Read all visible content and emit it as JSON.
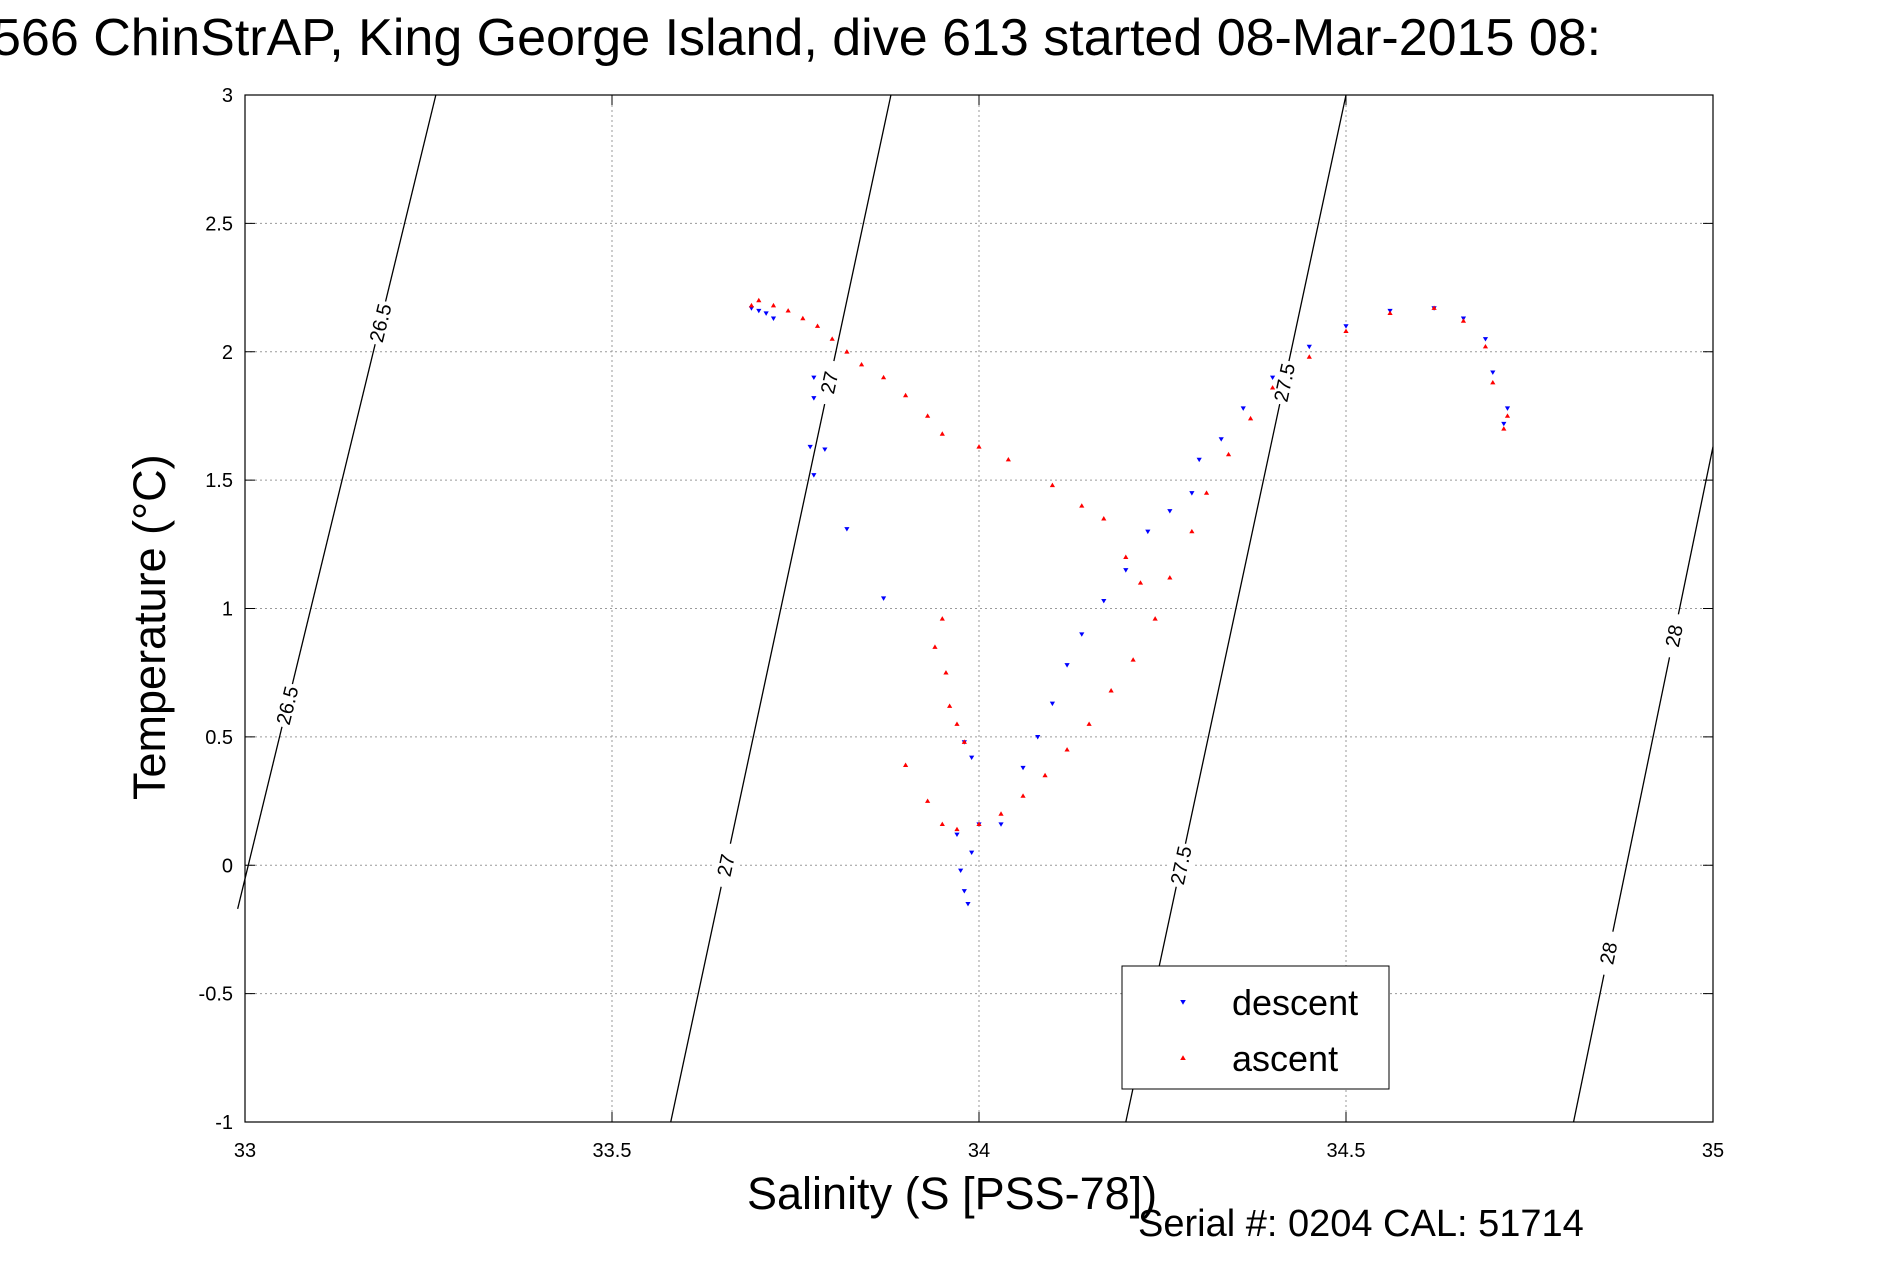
{
  "title": "566 ChinStrAP, King George Island, dive 613 started 08-Mar-2015 08:",
  "footer": "Serial #: 0204  CAL: 51714",
  "chart_data": {
    "type": "scatter",
    "title": "566 ChinStrAP, King George Island, dive 613 started 08-Mar-2015 08:",
    "xlabel": "Salinity (S [PSS-78])",
    "ylabel": "Temperature (°C)",
    "xlim": [
      33,
      35
    ],
    "ylim": [
      -1,
      3
    ],
    "x_ticks": [
      "33",
      "33.5",
      "34",
      "34.5",
      "35"
    ],
    "y_ticks": [
      "-1",
      "-0.5",
      "0",
      "0.5",
      "1",
      "1.5",
      "2",
      "2.5",
      "3"
    ],
    "grid": true,
    "legend_position": "lower-right",
    "contours": {
      "quantity": "density isolines",
      "levels": [
        {
          "level": "26.5",
          "line": [
            [
              32.99,
              -0.17
            ],
            [
              33.26,
              3.0
            ]
          ]
        },
        {
          "level": "27",
          "line": [
            [
              33.58,
              -1.0
            ],
            [
              33.88,
              3.0
            ]
          ]
        },
        {
          "level": "27.5",
          "line": [
            [
              34.2,
              -1.0
            ],
            [
              34.5,
              3.0
            ]
          ]
        },
        {
          "level": "28",
          "line": [
            [
              34.81,
              -1.0
            ],
            [
              35.0,
              1.63
            ]
          ]
        }
      ]
    },
    "series": [
      {
        "name": "descent",
        "color": "#0000ff",
        "marker": "triangle-down",
        "points": [
          [
            33.69,
            2.17
          ],
          [
            33.7,
            2.16
          ],
          [
            33.71,
            2.15
          ],
          [
            33.72,
            2.13
          ],
          [
            33.775,
            1.9
          ],
          [
            33.775,
            1.82
          ],
          [
            33.77,
            1.63
          ],
          [
            33.79,
            1.62
          ],
          [
            33.775,
            1.52
          ],
          [
            33.82,
            1.31
          ],
          [
            33.87,
            1.04
          ],
          [
            33.98,
            0.48
          ],
          [
            33.99,
            0.42
          ],
          [
            33.975,
            -0.02
          ],
          [
            33.98,
            -0.1
          ],
          [
            33.985,
            -0.15
          ],
          [
            33.99,
            0.05
          ],
          [
            33.97,
            0.12
          ],
          [
            34.0,
            0.16
          ],
          [
            34.03,
            0.16
          ],
          [
            34.06,
            0.38
          ],
          [
            34.08,
            0.5
          ],
          [
            34.1,
            0.63
          ],
          [
            34.12,
            0.78
          ],
          [
            34.14,
            0.9
          ],
          [
            34.17,
            1.03
          ],
          [
            34.2,
            1.15
          ],
          [
            34.23,
            1.3
          ],
          [
            34.26,
            1.38
          ],
          [
            34.29,
            1.45
          ],
          [
            34.3,
            1.58
          ],
          [
            34.33,
            1.66
          ],
          [
            34.36,
            1.78
          ],
          [
            34.4,
            1.9
          ],
          [
            34.45,
            2.02
          ],
          [
            34.5,
            2.1
          ],
          [
            34.56,
            2.16
          ],
          [
            34.62,
            2.17
          ],
          [
            34.66,
            2.13
          ],
          [
            34.69,
            2.05
          ],
          [
            34.7,
            1.92
          ],
          [
            34.72,
            1.78
          ],
          [
            34.715,
            1.72
          ]
        ]
      },
      {
        "name": "ascent",
        "color": "#ff0000",
        "marker": "triangle-up",
        "points": [
          [
            33.69,
            2.18
          ],
          [
            33.7,
            2.2
          ],
          [
            33.72,
            2.18
          ],
          [
            33.74,
            2.16
          ],
          [
            33.76,
            2.13
          ],
          [
            33.78,
            2.1
          ],
          [
            33.8,
            2.05
          ],
          [
            33.82,
            2.0
          ],
          [
            33.84,
            1.95
          ],
          [
            33.87,
            1.9
          ],
          [
            33.9,
            1.83
          ],
          [
            33.93,
            1.75
          ],
          [
            33.95,
            1.68
          ],
          [
            34.0,
            1.63
          ],
          [
            34.04,
            1.58
          ],
          [
            34.1,
            1.48
          ],
          [
            34.14,
            1.4
          ],
          [
            34.17,
            1.35
          ],
          [
            34.2,
            1.2
          ],
          [
            34.22,
            1.1
          ],
          [
            33.95,
            0.96
          ],
          [
            33.94,
            0.85
          ],
          [
            33.955,
            0.75
          ],
          [
            33.96,
            0.62
          ],
          [
            33.97,
            0.55
          ],
          [
            33.98,
            0.48
          ],
          [
            33.9,
            0.39
          ],
          [
            33.93,
            0.25
          ],
          [
            33.95,
            0.16
          ],
          [
            33.97,
            0.14
          ],
          [
            34.0,
            0.16
          ],
          [
            34.03,
            0.2
          ],
          [
            34.06,
            0.27
          ],
          [
            34.09,
            0.35
          ],
          [
            34.12,
            0.45
          ],
          [
            34.15,
            0.55
          ],
          [
            34.18,
            0.68
          ],
          [
            34.21,
            0.8
          ],
          [
            34.24,
            0.96
          ],
          [
            34.26,
            1.12
          ],
          [
            34.29,
            1.3
          ],
          [
            34.31,
            1.45
          ],
          [
            34.34,
            1.6
          ],
          [
            34.37,
            1.74
          ],
          [
            34.4,
            1.86
          ],
          [
            34.45,
            1.98
          ],
          [
            34.5,
            2.08
          ],
          [
            34.56,
            2.15
          ],
          [
            34.62,
            2.17
          ],
          [
            34.66,
            2.12
          ],
          [
            34.69,
            2.02
          ],
          [
            34.7,
            1.88
          ],
          [
            34.72,
            1.75
          ],
          [
            34.715,
            1.7
          ]
        ]
      }
    ]
  }
}
